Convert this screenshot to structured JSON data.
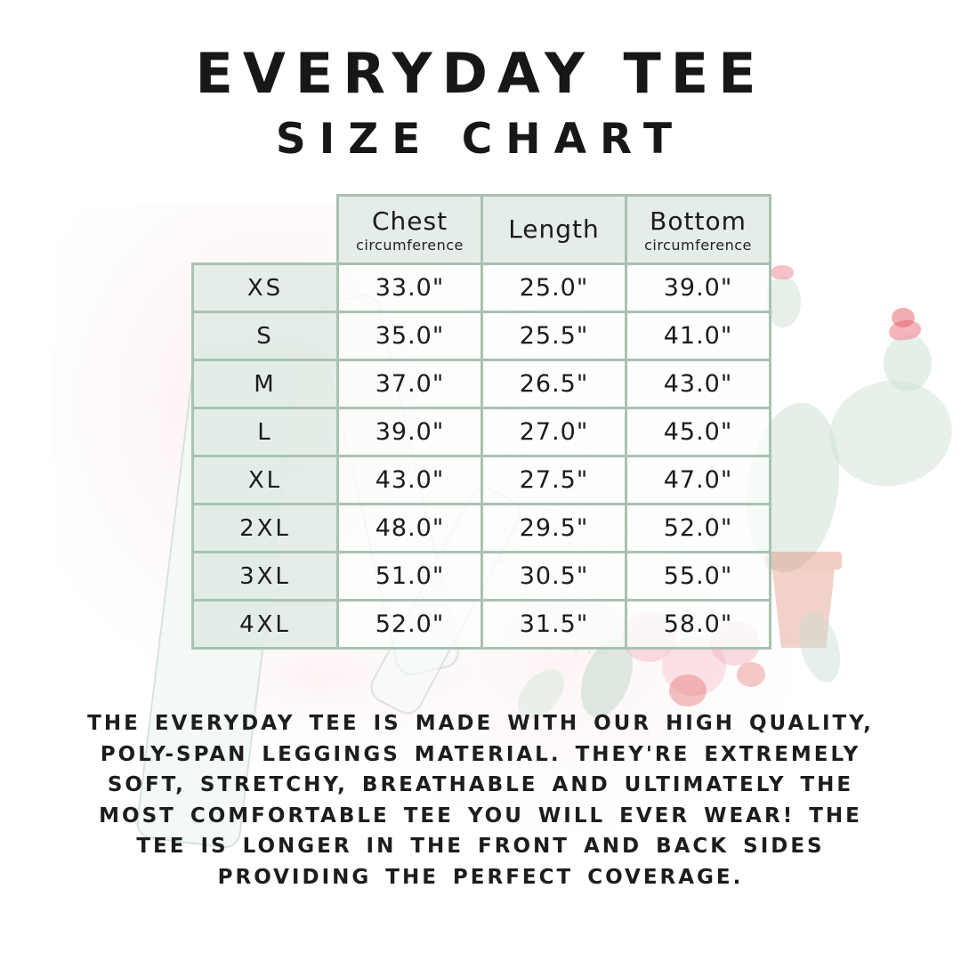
{
  "title": {
    "line1": "EVERYDAY TEE",
    "line2": "SIZE CHART"
  },
  "table": {
    "columns": [
      {
        "label": "Chest",
        "sublabel": "circumference"
      },
      {
        "label": "Length",
        "sublabel": ""
      },
      {
        "label": "Bottom",
        "sublabel": "circumference"
      }
    ],
    "rows": [
      {
        "size": "XS",
        "chest": "33.0\"",
        "length": "25.0\"",
        "bottom": "39.0\""
      },
      {
        "size": "S",
        "chest": "35.0\"",
        "length": "25.5\"",
        "bottom": "41.0\""
      },
      {
        "size": "M",
        "chest": "37.0\"",
        "length": "26.5\"",
        "bottom": "43.0\""
      },
      {
        "size": "L",
        "chest": "39.0\"",
        "length": "27.0\"",
        "bottom": "45.0\""
      },
      {
        "size": "XL",
        "chest": "43.0\"",
        "length": "27.5\"",
        "bottom": "47.0\""
      },
      {
        "size": "2XL",
        "chest": "48.0\"",
        "length": "29.5\"",
        "bottom": "52.0\""
      },
      {
        "size": "3XL",
        "chest": "51.0\"",
        "length": "30.5\"",
        "bottom": "55.0\""
      },
      {
        "size": "4XL",
        "chest": "52.0\"",
        "length": "31.5\"",
        "bottom": "58.0\""
      }
    ]
  },
  "description": {
    "text": "THE EVERYDAY TEE IS MADE WITH OUR HIGH QUALITY, POLY-SPAN LEGGINGS MATERIAL. THEY'RE EXTREMELY SOFT, STRETCHY, BREATHABLE AND ULTIMATELY THE MOST COMFORTABLE TEE YOU WILL EVER WEAR! THE TEE IS LONGER IN THE FRONT AND BACK SIDES PROVIDING THE PERFECT COVERAGE."
  },
  "colors": {
    "table_border": "#a9c2b2",
    "header_bg": "#e2ece5",
    "value_cell_bg": "#fcfefc",
    "text": "#1b1b1b",
    "accent_pink": "#f29ca6",
    "accent_terracotta": "#e08873",
    "accent_mint": "#cde2d4"
  }
}
